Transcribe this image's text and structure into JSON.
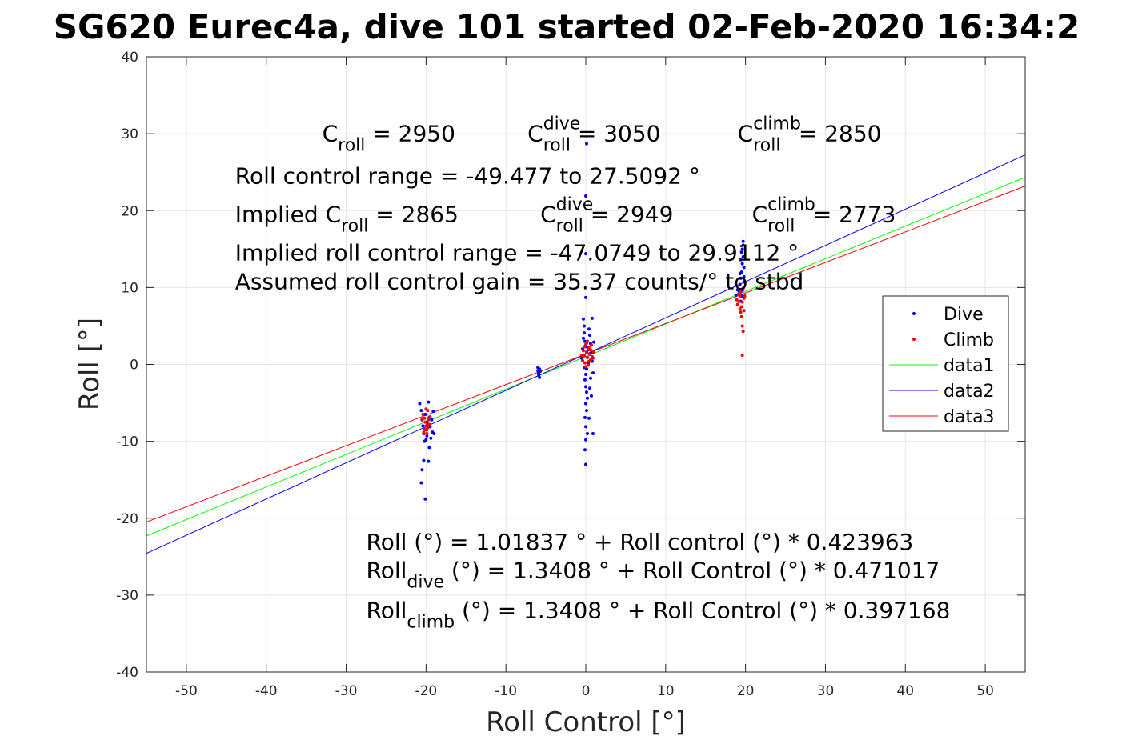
{
  "chart_data": {
    "type": "scatter",
    "title": "SG620 Eurec4a, dive 101 started 02-Feb-2020 16:34:2",
    "xlabel": "Roll Control [°]",
    "ylabel": "Roll [°]",
    "xlim": [
      -55,
      55
    ],
    "ylim": [
      -40,
      40
    ],
    "xticks": [
      -50,
      -40,
      -30,
      -20,
      -10,
      0,
      10,
      20,
      30,
      40,
      50
    ],
    "yticks": [
      -40,
      -30,
      -20,
      -10,
      0,
      10,
      20,
      30,
      40
    ],
    "grid": true,
    "legend_position": "right",
    "series": [
      {
        "name": "Dive",
        "kind": "points",
        "color": "#0000ff",
        "points": [
          [
            -20.8,
            -5.1
          ],
          [
            -20.6,
            -6.0
          ],
          [
            -20.5,
            -7.2
          ],
          [
            -20.4,
            -8.0
          ],
          [
            -20.3,
            -9.0
          ],
          [
            -20.2,
            -10.0
          ],
          [
            -20.3,
            -12.5
          ],
          [
            -20.5,
            -13.7
          ],
          [
            -20.6,
            -15.4
          ],
          [
            -20.1,
            -17.5
          ],
          [
            -20.0,
            -8.5
          ],
          [
            -19.9,
            -9.3
          ],
          [
            -19.8,
            -7.8
          ],
          [
            -19.7,
            -4.9
          ],
          [
            -19.6,
            -6.9
          ],
          [
            -19.5,
            -8.1
          ],
          [
            -19.4,
            -9.6
          ],
          [
            -19.6,
            -10.8
          ],
          [
            -19.7,
            -12.6
          ],
          [
            -19.3,
            -7.2
          ],
          [
            -19.2,
            -8.8
          ],
          [
            -19.1,
            -6.1
          ],
          [
            -19.0,
            -9.0
          ],
          [
            -20.1,
            -6.5
          ],
          [
            -19.9,
            -7.5
          ],
          [
            -19.8,
            -8.2
          ],
          [
            -20.0,
            -9.8
          ],
          [
            -6.0,
            -0.4
          ],
          [
            -6.0,
            -0.8
          ],
          [
            -5.9,
            -1.1
          ],
          [
            -5.9,
            -1.4
          ],
          [
            -5.8,
            -0.6
          ],
          [
            -5.8,
            -1.7
          ],
          [
            -5.7,
            -0.9
          ],
          [
            -0.3,
            5.9
          ],
          [
            -0.2,
            5.0
          ],
          [
            -0.2,
            4.1
          ],
          [
            -0.1,
            3.0
          ],
          [
            0.0,
            2.3
          ],
          [
            0.1,
            1.6
          ],
          [
            0.2,
            0.9
          ],
          [
            0.3,
            0.1
          ],
          [
            0.1,
            -0.6
          ],
          [
            0.0,
            -1.3
          ],
          [
            -0.1,
            -2.0
          ],
          [
            0.0,
            -2.9
          ],
          [
            0.1,
            -3.6
          ],
          [
            0.2,
            -4.4
          ],
          [
            0.0,
            -5.1
          ],
          [
            0.1,
            -6.0
          ],
          [
            -0.1,
            -6.9
          ],
          [
            0.0,
            -8.1
          ],
          [
            0.2,
            -9.0
          ],
          [
            0.0,
            -9.8
          ],
          [
            -0.1,
            -11.1
          ],
          [
            0.0,
            -13.0
          ],
          [
            0.4,
            4.6
          ],
          [
            0.5,
            3.8
          ],
          [
            0.6,
            2.7
          ],
          [
            0.7,
            1.5
          ],
          [
            0.8,
            0.4
          ],
          [
            0.6,
            -1.8
          ],
          [
            0.5,
            -3.1
          ],
          [
            0.7,
            -4.1
          ],
          [
            0.9,
            -9.0
          ],
          [
            0.8,
            6.0
          ],
          [
            0.4,
            -7.0
          ],
          [
            0.0,
            14.4
          ],
          [
            0.0,
            21.9
          ],
          [
            0.1,
            28.7
          ],
          [
            0.0,
            8.7
          ],
          [
            -0.3,
            3.4
          ],
          [
            -0.4,
            2.0
          ],
          [
            -0.2,
            -0.4
          ],
          [
            -0.5,
            0.8
          ],
          [
            1.0,
            2.9
          ],
          [
            0.9,
            -1.1
          ],
          [
            19.2,
            9.5
          ],
          [
            19.3,
            10.4
          ],
          [
            19.4,
            11.2
          ],
          [
            19.5,
            12.0
          ],
          [
            19.6,
            13.1
          ],
          [
            19.7,
            14.0
          ],
          [
            19.6,
            15.0
          ],
          [
            19.7,
            16.0
          ],
          [
            19.5,
            8.9
          ],
          [
            19.4,
            8.2
          ],
          [
            19.8,
            12.6
          ],
          [
            19.9,
            10.7
          ],
          [
            19.3,
            11.8
          ],
          [
            19.5,
            14.6
          ],
          [
            19.6,
            9.6
          ],
          [
            18.8,
            9.0
          ],
          [
            19.0,
            9.7
          ],
          [
            19.7,
            15.5
          ],
          [
            19.4,
            13.6
          ],
          [
            19.8,
            11.4
          ]
        ]
      },
      {
        "name": "Climb",
        "kind": "points",
        "color": "#ff0000",
        "points": [
          [
            -20.4,
            -6.5
          ],
          [
            -20.2,
            -7.0
          ],
          [
            -20.1,
            -7.5
          ],
          [
            -20.0,
            -8.0
          ],
          [
            -19.9,
            -8.5
          ],
          [
            -19.8,
            -6.0
          ],
          [
            -19.7,
            -7.2
          ],
          [
            -19.6,
            -7.8
          ],
          [
            -20.3,
            -8.8
          ],
          [
            -20.5,
            -7.1
          ],
          [
            -19.9,
            -9.0
          ],
          [
            -19.5,
            -6.8
          ],
          [
            -20.0,
            -5.8
          ],
          [
            -19.8,
            -8.2
          ],
          [
            -20.2,
            -8.4
          ],
          [
            -0.5,
            1.2
          ],
          [
            -0.3,
            1.8
          ],
          [
            -0.2,
            2.3
          ],
          [
            0.0,
            2.6
          ],
          [
            0.1,
            1.5
          ],
          [
            0.2,
            0.9
          ],
          [
            0.3,
            1.9
          ],
          [
            0.4,
            2.2
          ],
          [
            0.5,
            1.3
          ],
          [
            0.6,
            0.6
          ],
          [
            0.8,
            1.0
          ],
          [
            1.0,
            1.6
          ],
          [
            -0.1,
            0.2
          ],
          [
            0.0,
            -0.3
          ],
          [
            0.2,
            3.0
          ],
          [
            0.4,
            0.4
          ],
          [
            0.7,
            2.5
          ],
          [
            0.9,
            0.8
          ],
          [
            -0.4,
            0.5
          ],
          [
            0.1,
            2.8
          ],
          [
            0.6,
            1.9
          ],
          [
            0.3,
            -0.1
          ],
          [
            -0.2,
            1.1
          ],
          [
            19.0,
            7.8
          ],
          [
            19.2,
            8.2
          ],
          [
            19.3,
            8.9
          ],
          [
            19.4,
            9.4
          ],
          [
            19.5,
            7.5
          ],
          [
            19.6,
            8.1
          ],
          [
            19.7,
            9.9
          ],
          [
            19.8,
            8.6
          ],
          [
            19.4,
            6.8
          ],
          [
            19.5,
            6.2
          ],
          [
            19.6,
            5.0
          ],
          [
            19.7,
            4.3
          ],
          [
            19.6,
            1.2
          ],
          [
            19.3,
            7.2
          ],
          [
            19.9,
            8.9
          ],
          [
            18.9,
            8.4
          ],
          [
            19.1,
            9.1
          ],
          [
            19.8,
            7.0
          ]
        ]
      },
      {
        "name": "data1",
        "kind": "line",
        "color": "#00ff00",
        "x": [
          -55,
          55
        ],
        "y": [
          -22.3,
          24.34
        ]
      },
      {
        "name": "data2",
        "kind": "line",
        "color": "#0000ff",
        "x": [
          -55,
          55
        ],
        "y": [
          -24.57,
          27.25
        ]
      },
      {
        "name": "data3",
        "kind": "line",
        "color": "#ff0000",
        "x": [
          -55,
          55
        ],
        "y": [
          -20.5,
          23.19
        ]
      }
    ],
    "annotations": [
      {
        "id": "croll",
        "x": -33,
        "y": 29
      },
      {
        "id": "cdive",
        "x": -7.3,
        "y": 29
      },
      {
        "id": "cclimb",
        "x": 19,
        "y": 29
      },
      {
        "id": "range",
        "x": -43.9,
        "y": 23.5
      },
      {
        "id": "impl",
        "x": -43.9,
        "y": 18.5
      },
      {
        "id": "impldive",
        "x": -5.7,
        "y": 18.5
      },
      {
        "id": "implclimb",
        "x": 20.8,
        "y": 18.5
      },
      {
        "id": "implrange",
        "x": -43.9,
        "y": 13.5
      },
      {
        "id": "gain",
        "x": -43.9,
        "y": 9.8
      },
      {
        "id": "eq1",
        "x": -27.5,
        "y": -24.1
      },
      {
        "id": "eq2",
        "x": -27.5,
        "y": -27.8
      },
      {
        "id": "eq3",
        "x": -27.5,
        "y": -33.0
      }
    ]
  },
  "labels": {
    "croll": {
      "main": "C",
      "sub": "roll",
      "rest": " = 2950"
    },
    "cdive": {
      "main": "C",
      "sup": "dive",
      "sub": "roll",
      "rest": " = 3050"
    },
    "cclimb": {
      "main": "C",
      "sup": "climb",
      "sub": "roll",
      "rest": " = 2850"
    },
    "range": {
      "text": "Roll control range = -49.477 to 27.5092 °"
    },
    "impl": {
      "main": "Implied C",
      "sub": "roll",
      "rest": " = 2865"
    },
    "impldive": {
      "main": "C",
      "sup": "dive",
      "sub": "roll",
      "rest": " = 2949"
    },
    "implclimb": {
      "main": "C",
      "sup": "climb",
      "sub": "roll",
      "rest": " = 2773"
    },
    "implrange": {
      "text": "Implied roll control range = -47.0749 to 29.9112 °"
    },
    "gain": {
      "text": "Assumed roll control gain = 35.37 counts/° to stbd"
    },
    "eq1": {
      "text": "Roll (°) = 1.01837 ° + Roll control (°) * 0.423963"
    },
    "eq2": {
      "main": "Roll",
      "sub": "dive",
      "rest": " (°) = 1.3408 ° + Roll Control (°) * 0.471017"
    },
    "eq3": {
      "main": "Roll",
      "sub": "climb",
      "rest": " (°) = 1.3408 ° + Roll Control (°) * 0.397168"
    }
  },
  "colors": {
    "axis": "#262626",
    "grid": "#e6e6e6"
  }
}
